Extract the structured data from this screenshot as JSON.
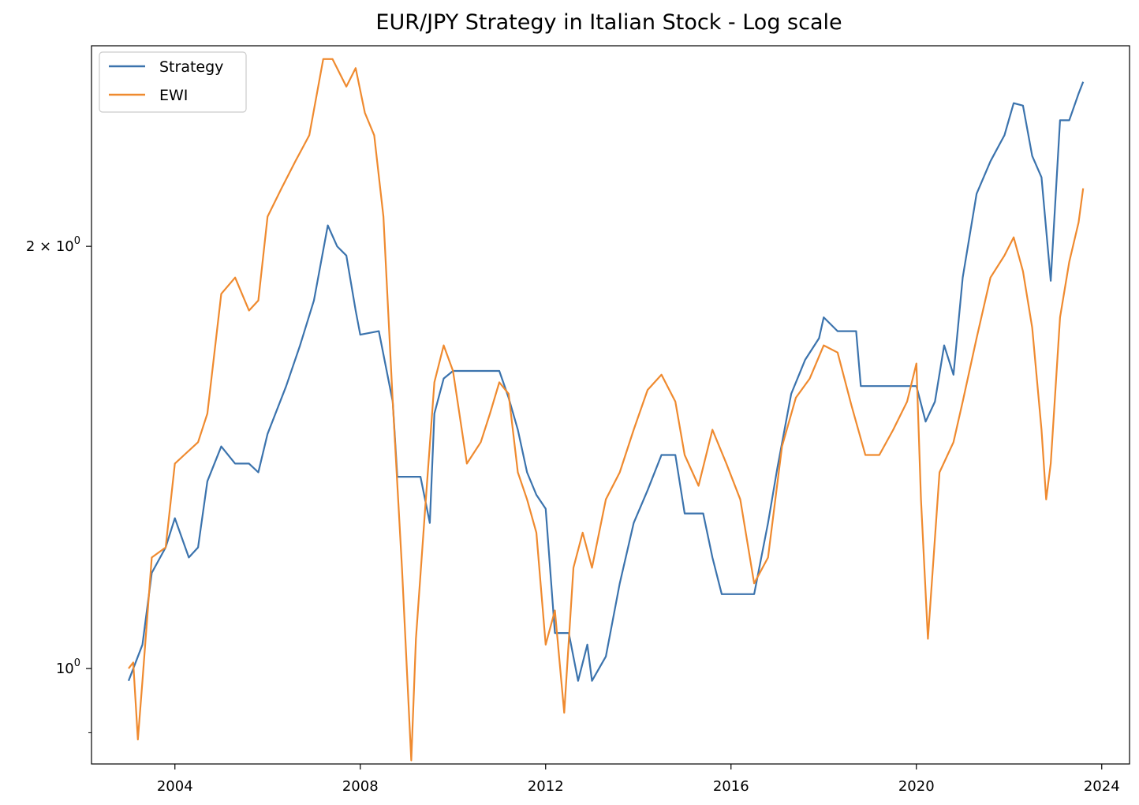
{
  "chart_data": {
    "type": "line",
    "title": "EUR/JPY Strategy in Italian Stock - Log scale",
    "xlabel": "",
    "ylabel": "",
    "yscale": "log",
    "xlim": [
      2002.2,
      2024.6
    ],
    "ylim": [
      0.855,
      2.78
    ],
    "x_ticks": [
      2004,
      2008,
      2012,
      2016,
      2020,
      2024
    ],
    "x_tick_labels": [
      "2004",
      "2008",
      "2012",
      "2016",
      "2020",
      "2024"
    ],
    "y_major_ticks": [
      {
        "value": 1.0,
        "label_base": "10",
        "label_exp": "0"
      },
      {
        "value": 2.0,
        "label_coef": "2",
        "label_sep": " × ",
        "label_base": "10",
        "label_exp": "0"
      }
    ],
    "y_minor_ticks": [
      0.9,
      3.0
    ],
    "legend": {
      "position": "top-left",
      "entries": [
        "Strategy",
        "EWI"
      ]
    },
    "colors": {
      "Strategy": "#3b73ad",
      "EWI": "#ef8a2f"
    },
    "series": [
      {
        "name": "Strategy",
        "x": [
          2003.0,
          2003.3,
          2003.5,
          2003.8,
          2004.0,
          2004.3,
          2004.5,
          2004.7,
          2005.0,
          2005.3,
          2005.6,
          2005.8,
          2006.0,
          2006.4,
          2006.7,
          2007.0,
          2007.3,
          2007.5,
          2007.7,
          2007.9,
          2008.0,
          2008.4,
          2008.7,
          2008.8,
          2009.0,
          2009.3,
          2009.5,
          2009.6,
          2009.8,
          2010.0,
          2010.5,
          2011.0,
          2011.2,
          2011.4,
          2011.6,
          2011.8,
          2012.0,
          2012.2,
          2012.3,
          2012.5,
          2012.7,
          2012.9,
          2013.0,
          2013.3,
          2013.6,
          2013.9,
          2014.2,
          2014.5,
          2014.8,
          2015.0,
          2015.4,
          2015.6,
          2015.8,
          2016.0,
          2016.5,
          2016.8,
          2017.0,
          2017.3,
          2017.6,
          2017.9,
          2018.0,
          2018.3,
          2018.7,
          2018.8,
          2019.0,
          2019.5,
          2020.0,
          2020.2,
          2020.4,
          2020.6,
          2020.8,
          2021.0,
          2021.3,
          2021.6,
          2021.9,
          2022.1,
          2022.3,
          2022.5,
          2022.7,
          2022.9,
          2023.1,
          2023.3,
          2023.5,
          2023.6
        ],
        "y": [
          0.98,
          1.04,
          1.17,
          1.22,
          1.28,
          1.2,
          1.22,
          1.36,
          1.44,
          1.4,
          1.4,
          1.38,
          1.47,
          1.59,
          1.7,
          1.83,
          2.07,
          2.0,
          1.97,
          1.8,
          1.73,
          1.74,
          1.55,
          1.37,
          1.37,
          1.37,
          1.27,
          1.52,
          1.61,
          1.63,
          1.63,
          1.63,
          1.56,
          1.48,
          1.38,
          1.33,
          1.3,
          1.06,
          1.06,
          1.06,
          0.98,
          1.04,
          0.98,
          1.02,
          1.15,
          1.27,
          1.34,
          1.42,
          1.42,
          1.29,
          1.29,
          1.2,
          1.13,
          1.13,
          1.13,
          1.27,
          1.39,
          1.57,
          1.66,
          1.72,
          1.78,
          1.74,
          1.74,
          1.59,
          1.59,
          1.59,
          1.59,
          1.5,
          1.55,
          1.7,
          1.62,
          1.9,
          2.18,
          2.3,
          2.4,
          2.53,
          2.52,
          2.32,
          2.24,
          1.89,
          2.46,
          2.46,
          2.57,
          2.62
        ]
      },
      {
        "name": "EWI",
        "x": [
          2003.0,
          2003.1,
          2003.2,
          2003.3,
          2003.5,
          2003.8,
          2004.0,
          2004.2,
          2004.5,
          2004.7,
          2005.0,
          2005.3,
          2005.6,
          2005.8,
          2006.0,
          2006.3,
          2006.6,
          2006.9,
          2007.2,
          2007.4,
          2007.7,
          2007.9,
          2008.1,
          2008.3,
          2008.5,
          2008.7,
          2008.9,
          2009.1,
          2009.2,
          2009.4,
          2009.6,
          2009.8,
          2010.0,
          2010.3,
          2010.6,
          2010.8,
          2011.0,
          2011.2,
          2011.4,
          2011.6,
          2011.8,
          2012.0,
          2012.2,
          2012.4,
          2012.6,
          2012.8,
          2013.0,
          2013.3,
          2013.6,
          2013.9,
          2014.2,
          2014.5,
          2014.8,
          2015.0,
          2015.3,
          2015.6,
          2015.9,
          2016.2,
          2016.5,
          2016.8,
          2017.1,
          2017.4,
          2017.7,
          2018.0,
          2018.3,
          2018.6,
          2018.9,
          2019.2,
          2019.5,
          2019.8,
          2020.0,
          2020.1,
          2020.25,
          2020.5,
          2020.8,
          2021.0,
          2021.3,
          2021.6,
          2021.9,
          2022.1,
          2022.3,
          2022.5,
          2022.7,
          2022.8,
          2022.9,
          2023.1,
          2023.3,
          2023.5,
          2023.6
        ],
        "y": [
          1.0,
          1.01,
          0.89,
          0.98,
          1.2,
          1.22,
          1.4,
          1.42,
          1.45,
          1.52,
          1.85,
          1.9,
          1.8,
          1.83,
          2.1,
          2.2,
          2.3,
          2.4,
          2.72,
          2.72,
          2.6,
          2.68,
          2.49,
          2.4,
          2.1,
          1.55,
          1.18,
          0.86,
          1.05,
          1.3,
          1.6,
          1.7,
          1.63,
          1.4,
          1.45,
          1.52,
          1.6,
          1.57,
          1.38,
          1.32,
          1.25,
          1.04,
          1.1,
          0.93,
          1.18,
          1.25,
          1.18,
          1.32,
          1.38,
          1.48,
          1.58,
          1.62,
          1.55,
          1.42,
          1.35,
          1.48,
          1.4,
          1.32,
          1.15,
          1.2,
          1.44,
          1.56,
          1.61,
          1.7,
          1.68,
          1.54,
          1.42,
          1.42,
          1.48,
          1.55,
          1.65,
          1.32,
          1.05,
          1.38,
          1.45,
          1.55,
          1.72,
          1.9,
          1.97,
          2.03,
          1.92,
          1.75,
          1.48,
          1.32,
          1.4,
          1.78,
          1.95,
          2.08,
          2.2
        ]
      }
    ]
  }
}
